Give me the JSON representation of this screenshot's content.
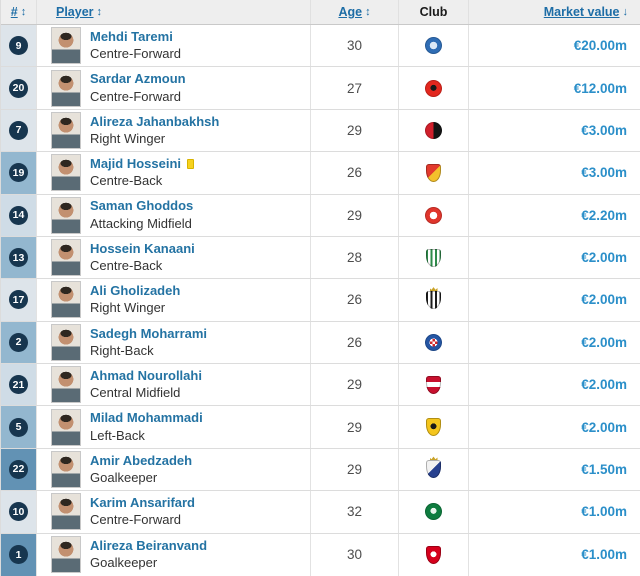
{
  "header": {
    "cells": [
      {
        "label": "#",
        "arrow": "↕",
        "sortable": true
      },
      {
        "label": "Player",
        "arrow": "↕",
        "sortable": true
      },
      {
        "label": "Age",
        "arrow": "↕",
        "sortable": true
      },
      {
        "label": "Club",
        "arrow": "",
        "sortable": false
      },
      {
        "label": "Market value",
        "arrow": "↓",
        "sortable": true
      }
    ]
  },
  "colors": {
    "header_bg": "#eeeeee",
    "link_blue": "#2473a3",
    "value_blue": "#2b8fc9",
    "badge_navy": "#17364f",
    "row_border": "#dcdcdc",
    "position_cell": {
      "goalkeeper": "#6292b4",
      "defender": "#93b7cf",
      "midfielder": "#cfdce6",
      "forward": "#dde4ea"
    }
  },
  "players": [
    {
      "number": "9",
      "name": "Mehdi Taremi",
      "position": "Centre-Forward",
      "pos_class": "forward",
      "age": "30",
      "market_value": "€20.00m",
      "booked": false,
      "club_icon": "fc-porto-crest",
      "crest": {
        "shape": "circle",
        "pattern": "ring",
        "colors": [
          "#2f6db5",
          "#dce9f7"
        ],
        "crown": false
      }
    },
    {
      "number": "20",
      "name": "Sardar Azmoun",
      "position": "Centre-Forward",
      "pos_class": "forward",
      "age": "27",
      "market_value": "€12.00m",
      "booked": false,
      "club_icon": "bayer-leverkusen-crest",
      "crest": {
        "shape": "circle",
        "pattern": "emblem",
        "colors": [
          "#e3271e",
          "#1a1a1a"
        ],
        "crown": false
      }
    },
    {
      "number": "7",
      "name": "Alireza Jahanbakhsh",
      "position": "Right Winger",
      "pos_class": "forward",
      "age": "29",
      "market_value": "€3.00m",
      "booked": false,
      "club_icon": "feyenoord-crest",
      "crest": {
        "shape": "circle",
        "pattern": "halves",
        "colors": [
          "#d01f2b",
          "#141414"
        ],
        "crown": false
      }
    },
    {
      "number": "19",
      "name": "Majid Hosseini",
      "position": "Centre-Back",
      "pos_class": "defender",
      "age": "26",
      "market_value": "€3.00m",
      "booked": true,
      "club_icon": "kayserispor-crest",
      "crest": {
        "shape": "shield",
        "pattern": "diag",
        "colors": [
          "#e23a2d",
          "#f3c02c"
        ],
        "crown": false
      }
    },
    {
      "number": "14",
      "name": "Saman Ghoddos",
      "position": "Attacking Midfield",
      "pos_class": "midfielder",
      "age": "29",
      "market_value": "€2.20m",
      "booked": false,
      "club_icon": "brentford-crest",
      "crest": {
        "shape": "circle",
        "pattern": "ring",
        "colors": [
          "#e0352c",
          "#ffffff"
        ],
        "crown": false
      }
    },
    {
      "number": "13",
      "name": "Hossein Kanaani",
      "position": "Centre-Back",
      "pos_class": "defender",
      "age": "28",
      "market_value": "€2.00m",
      "booked": false,
      "club_icon": "al-ahli-doha-crest",
      "crest": {
        "shape": "shield",
        "pattern": "stripes",
        "colors": [
          "#ffffff",
          "#2e8b4a"
        ],
        "crown": false
      }
    },
    {
      "number": "17",
      "name": "Ali Gholizadeh",
      "position": "Right Winger",
      "pos_class": "forward",
      "age": "26",
      "market_value": "€2.00m",
      "booked": false,
      "club_icon": "charleroi-crest",
      "crest": {
        "shape": "shield",
        "pattern": "stripes",
        "colors": [
          "#ffffff",
          "#1c1c1c"
        ],
        "crown": true
      }
    },
    {
      "number": "2",
      "name": "Sadegh Moharrami",
      "position": "Right-Back",
      "pos_class": "defender",
      "age": "26",
      "market_value": "€2.00m",
      "booked": false,
      "club_icon": "dinamo-zagreb-crest",
      "crest": {
        "shape": "circle",
        "pattern": "checker",
        "colors": [
          "#2456a4",
          "#d22b2b",
          "#ffffff"
        ],
        "crown": false
      }
    },
    {
      "number": "21",
      "name": "Ahmad Nourollahi",
      "position": "Central Midfield",
      "pos_class": "midfielder",
      "age": "29",
      "market_value": "€2.00m",
      "booked": false,
      "club_icon": "shabab-al-ahli-crest",
      "crest": {
        "shape": "shield",
        "pattern": "band",
        "colors": [
          "#c8102e",
          "#ffffff"
        ],
        "crown": false
      }
    },
    {
      "number": "5",
      "name": "Milad Mohammadi",
      "position": "Left-Back",
      "pos_class": "defender",
      "age": "29",
      "market_value": "€2.00m",
      "booked": false,
      "club_icon": "aek-athens-crest",
      "crest": {
        "shape": "shield",
        "pattern": "emblem",
        "colors": [
          "#f4c51c",
          "#1a1a1a"
        ],
        "crown": false
      }
    },
    {
      "number": "22",
      "name": "Amir Abedzadeh",
      "position": "Goalkeeper",
      "pos_class": "goalkeeper",
      "age": "29",
      "market_value": "€1.50m",
      "booked": false,
      "club_icon": "ponferradina-crest",
      "crest": {
        "shape": "shield",
        "pattern": "diag",
        "colors": [
          "#f2f2f2",
          "#27418f"
        ],
        "crown": true
      }
    },
    {
      "number": "10",
      "name": "Karim Ansarifard",
      "position": "Centre-Forward",
      "pos_class": "forward",
      "age": "32",
      "market_value": "€1.00m",
      "booked": false,
      "club_icon": "omonia-nicosia-crest",
      "crest": {
        "shape": "circle",
        "pattern": "emblem",
        "colors": [
          "#0e7c3f",
          "#e9f5ec"
        ],
        "crown": false
      }
    },
    {
      "number": "1",
      "name": "Alireza Beiranvand",
      "position": "Goalkeeper",
      "pos_class": "goalkeeper",
      "age": "30",
      "market_value": "€1.00m",
      "booked": false,
      "club_icon": "persepolis-crest",
      "crest": {
        "shape": "shield",
        "pattern": "emblem",
        "colors": [
          "#d6001c",
          "#ffffff"
        ],
        "crown": false
      }
    }
  ]
}
